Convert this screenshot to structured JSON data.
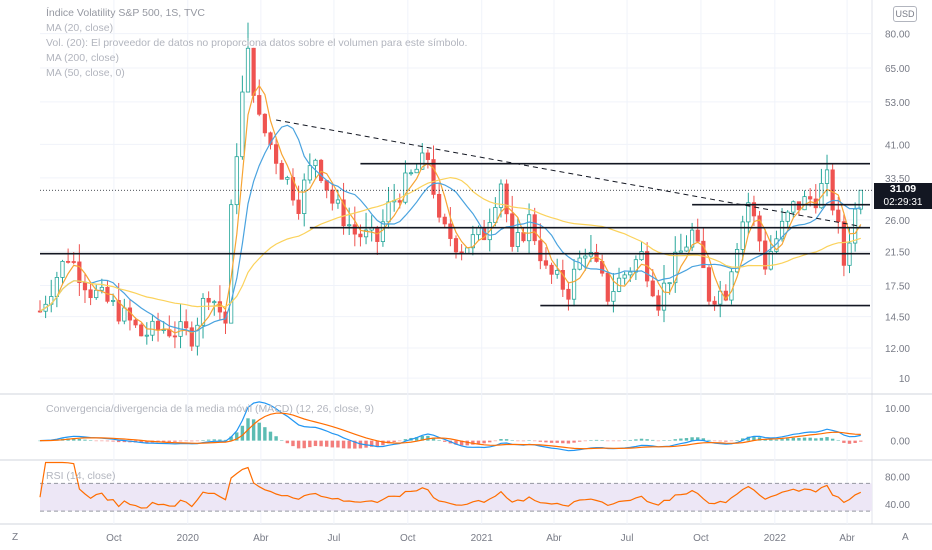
{
  "legend": {
    "title": "Índice Volatility S&P 500, 1S, TVC",
    "ma20": "MA (20, close)",
    "vol": "Vol. (20): El proveedor de datos no proporciona datos sobre el volumen para este símbolo.",
    "ma200": "MA (200, close)",
    "ma50": "MA (50, close, 0)"
  },
  "macd_legend": "Convergencia/divergencia de la media móvil (MACD) (12, 26, close, 9)",
  "rsi_legend": "RSI (14, close)",
  "currency_badge": "USD",
  "last_price": "31.09",
  "countdown": "02:29:31",
  "bottom_left_button": "Z",
  "bottom_right_button": "A",
  "colors": {
    "up": "#ffffff",
    "down": "#ef5350",
    "ma20": "#f7a534",
    "ma50": "#4aa3df",
    "ma200": "#fbd25b",
    "macd": "#2196f3",
    "signal": "#ff6d00",
    "rsi": "#ff6d00",
    "rsi_band": "#ede7f6"
  },
  "chart_data": [
    {
      "type": "candlestick",
      "title": "Índice Volatility S&P 500, 1S, TVC",
      "y_scale": "log",
      "ylim": [
        9.2,
        98
      ],
      "y_ticks": [
        "10",
        "12.00",
        "14.50",
        "17.50",
        "21.50",
        "26.00",
        "33.50",
        "41.00",
        "53.00",
        "65.00",
        "80.00"
      ],
      "x_tick_labels": [
        "Oct",
        "2020",
        "Abr",
        "Jul",
        "Oct",
        "2021",
        "Abr",
        "Jul",
        "Oct",
        "2022",
        "Abr"
      ],
      "x_tick_dates": [
        "2019-10-01",
        "2020-01-01",
        "2020-04-01",
        "2020-07-01",
        "2020-10-01",
        "2021-01-01",
        "2021-04-01",
        "2021-07-01",
        "2021-10-01",
        "2022-01-01",
        "2022-04-01"
      ],
      "last_value": 31.09,
      "weekly_ohlc_range": {
        "min_low": 11.75,
        "max_high": 85.47,
        "peak_week": "2020-03-16"
      },
      "horizontal_lines": [
        36.5,
        28.5,
        24.8,
        21.2,
        15.5
      ],
      "trendline": {
        "from": {
          "date": "2020-04-20",
          "value": 47.5
        },
        "to": {
          "date": "2022-04-18",
          "value": 25.0
        },
        "style": "dashed"
      },
      "series": [
        {
          "name": "MA (20, close)",
          "description": "orange line following close"
        },
        {
          "name": "MA (50, close, 0)",
          "description": "blue line"
        },
        {
          "name": "MA (200, close)",
          "description": "yellow line"
        }
      ]
    },
    {
      "type": "macd",
      "title": "Convergencia/divergencia de la media móvil (MACD) (12, 26, close, 9)",
      "y_ticks": [
        "10.00",
        "0.00"
      ],
      "peak": {
        "date": "2020-04-06",
        "macd": 12.5
      }
    },
    {
      "type": "line",
      "title": "RSI (14, close)",
      "y_ticks": [
        "80.00",
        "40.00"
      ],
      "band": [
        30,
        70
      ],
      "peak": {
        "date": "2020-03-16",
        "value": 82
      }
    }
  ]
}
